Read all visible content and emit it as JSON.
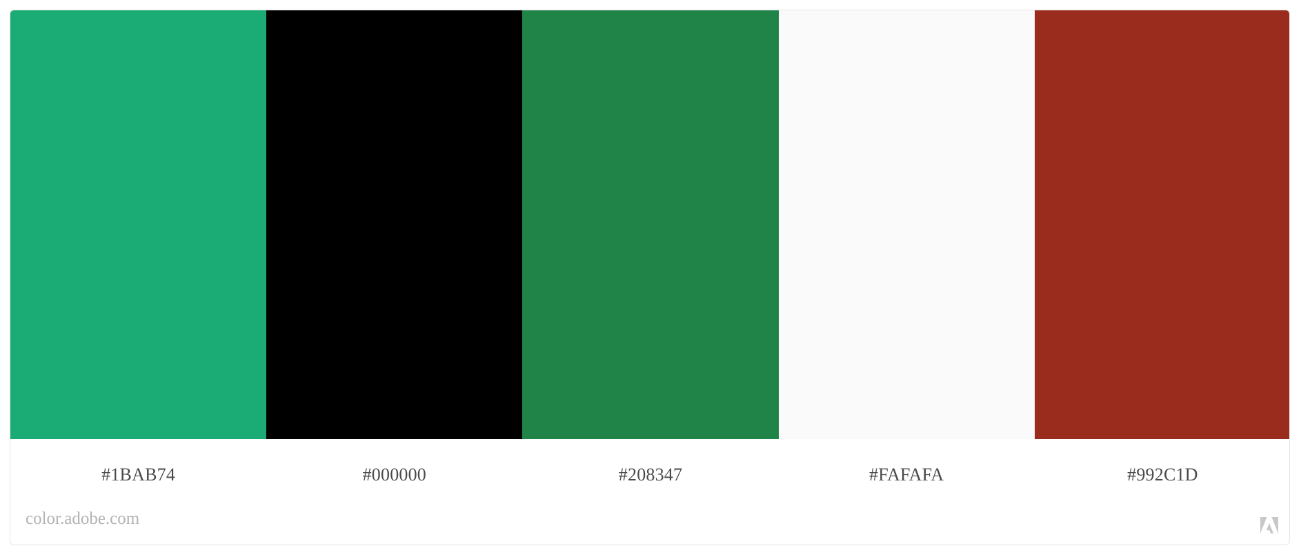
{
  "palette": {
    "swatches": [
      {
        "hex": "#1BAB74",
        "color": "#1BAB74"
      },
      {
        "hex": "#000000",
        "color": "#000000"
      },
      {
        "hex": "#208347",
        "color": "#208347"
      },
      {
        "hex": "#FAFAFA",
        "color": "#FAFAFA"
      },
      {
        "hex": "#992C1D",
        "color": "#992C1D"
      }
    ]
  },
  "footer": {
    "brand": "color.adobe.com",
    "logo_icon": "adobe-logo-icon"
  }
}
